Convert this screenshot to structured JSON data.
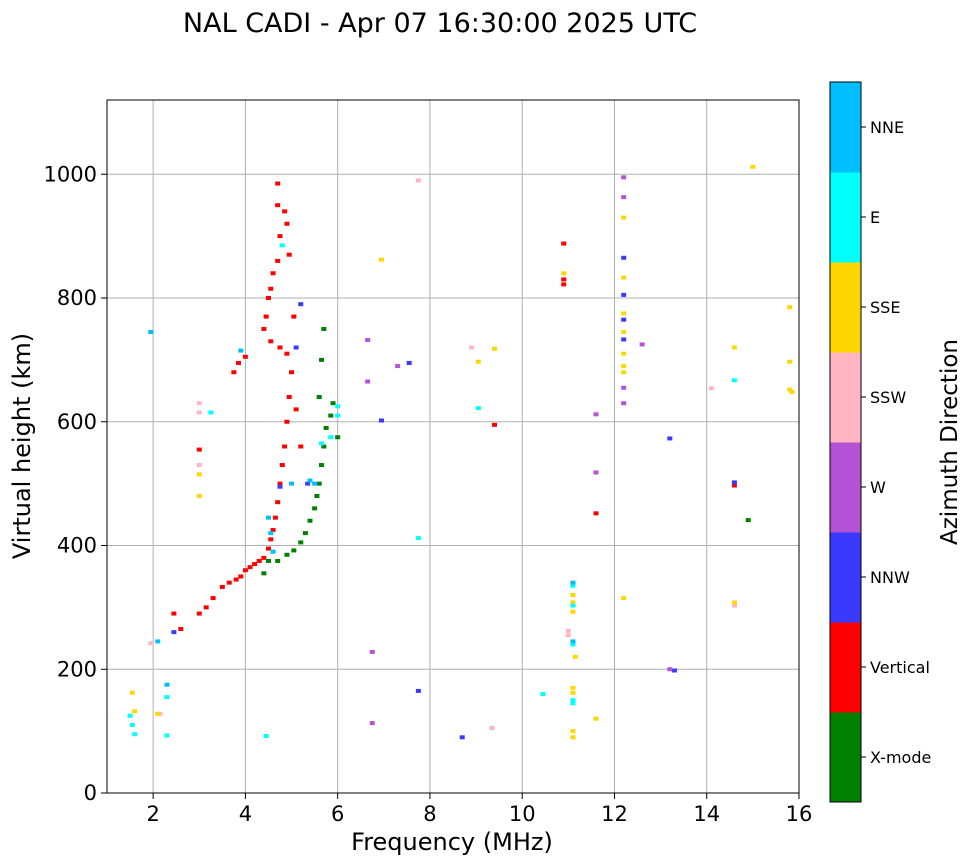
{
  "chart_data": {
    "type": "scatter",
    "title": "NAL CADI - Apr 07 16:30:00 2025 UTC",
    "xlabel": "Frequency (MHz)",
    "ylabel": "Virtual height (km)",
    "xlim": [
      1,
      16
    ],
    "ylim": [
      0,
      1120
    ],
    "xticks": [
      2,
      4,
      6,
      8,
      10,
      12,
      14,
      16
    ],
    "yticks": [
      0,
      200,
      400,
      600,
      800,
      1000
    ],
    "grid": true,
    "colorbar": {
      "label": "Azimuth Direction",
      "categories": [
        {
          "name": "X-mode",
          "color": "#008000"
        },
        {
          "name": "Vertical",
          "color": "#ff0000"
        },
        {
          "name": "NNW",
          "color": "#3a3aff"
        },
        {
          "name": "W",
          "color": "#b553d6"
        },
        {
          "name": "SSW",
          "color": "#ffb6c1"
        },
        {
          "name": "SSE",
          "color": "#ffd700"
        },
        {
          "name": "E",
          "color": "#00ffff"
        },
        {
          "name": "NNE",
          "color": "#00bfff"
        }
      ]
    },
    "series": [
      {
        "name": "Vertical",
        "points": [
          [
            2.45,
            290
          ],
          [
            2.6,
            265
          ],
          [
            3.0,
            290
          ],
          [
            3.15,
            300
          ],
          [
            3.3,
            315
          ],
          [
            3.5,
            333
          ],
          [
            3.65,
            340
          ],
          [
            3.8,
            345
          ],
          [
            3.9,
            350
          ],
          [
            4.0,
            360
          ],
          [
            4.1,
            365
          ],
          [
            4.2,
            370
          ],
          [
            4.3,
            375
          ],
          [
            4.4,
            380
          ],
          [
            4.5,
            395
          ],
          [
            4.55,
            410
          ],
          [
            4.6,
            425
          ],
          [
            4.65,
            445
          ],
          [
            4.7,
            470
          ],
          [
            4.75,
            500
          ],
          [
            4.8,
            530
          ],
          [
            4.85,
            560
          ],
          [
            4.9,
            600
          ],
          [
            4.95,
            640
          ],
          [
            5.0,
            680
          ],
          [
            4.9,
            710
          ],
          [
            4.75,
            720
          ],
          [
            4.55,
            730
          ],
          [
            4.4,
            750
          ],
          [
            4.45,
            770
          ],
          [
            4.5,
            800
          ],
          [
            4.55,
            815
          ],
          [
            4.6,
            840
          ],
          [
            4.7,
            860
          ],
          [
            4.75,
            900
          ],
          [
            4.7,
            950
          ],
          [
            4.7,
            985
          ],
          [
            4.85,
            940
          ],
          [
            4.9,
            920
          ],
          [
            4.95,
            870
          ],
          [
            5.05,
            770
          ],
          [
            5.1,
            620
          ],
          [
            5.2,
            560
          ],
          [
            3.75,
            680
          ],
          [
            3.85,
            695
          ],
          [
            4.0,
            705
          ],
          [
            3.0,
            555
          ],
          [
            10.9,
            888
          ],
          [
            10.9,
            830
          ],
          [
            10.9,
            822
          ],
          [
            9.4,
            595
          ],
          [
            11.6,
            452
          ],
          [
            14.6,
            497
          ]
        ]
      },
      {
        "name": "X-mode",
        "points": [
          [
            4.5,
            375
          ],
          [
            4.7,
            375
          ],
          [
            4.9,
            385
          ],
          [
            5.05,
            392
          ],
          [
            5.2,
            405
          ],
          [
            5.3,
            420
          ],
          [
            5.4,
            440
          ],
          [
            5.5,
            460
          ],
          [
            5.55,
            480
          ],
          [
            5.6,
            500
          ],
          [
            5.65,
            530
          ],
          [
            5.7,
            560
          ],
          [
            5.75,
            590
          ],
          [
            5.85,
            610
          ],
          [
            5.9,
            630
          ],
          [
            5.6,
            640
          ],
          [
            5.65,
            700
          ],
          [
            5.7,
            750
          ],
          [
            6.0,
            575
          ],
          [
            14.9,
            441
          ],
          [
            4.4,
            355
          ]
        ]
      },
      {
        "name": "NNW",
        "points": [
          [
            5.2,
            790
          ],
          [
            5.1,
            720
          ],
          [
            4.75,
            495
          ],
          [
            7.55,
            695
          ],
          [
            6.95,
            602
          ],
          [
            7.75,
            165
          ],
          [
            8.7,
            90
          ],
          [
            12.2,
            865
          ],
          [
            12.2,
            805
          ],
          [
            12.2,
            765
          ],
          [
            12.2,
            733
          ],
          [
            13.2,
            573
          ],
          [
            13.3,
            198
          ],
          [
            14.6,
            502
          ],
          [
            2.45,
            260
          ],
          [
            5.35,
            500
          ]
        ]
      },
      {
        "name": "W",
        "points": [
          [
            6.65,
            732
          ],
          [
            6.65,
            665
          ],
          [
            6.75,
            228
          ],
          [
            6.75,
            113
          ],
          [
            7.3,
            690
          ],
          [
            11.6,
            612
          ],
          [
            11.6,
            518
          ],
          [
            12.2,
            995
          ],
          [
            12.2,
            963
          ],
          [
            12.2,
            655
          ],
          [
            12.2,
            630
          ],
          [
            12.6,
            725
          ],
          [
            13.2,
            200
          ]
        ]
      },
      {
        "name": "SSW",
        "points": [
          [
            1.95,
            242
          ],
          [
            3.0,
            630
          ],
          [
            3.0,
            615
          ],
          [
            3.0,
            530
          ],
          [
            2.15,
            128
          ],
          [
            8.9,
            720
          ],
          [
            9.35,
            105
          ],
          [
            7.75,
            990
          ],
          [
            11.0,
            262
          ],
          [
            11.0,
            255
          ],
          [
            14.1,
            654
          ],
          [
            14.6,
            303
          ]
        ]
      },
      {
        "name": "SSE",
        "points": [
          [
            1.55,
            162
          ],
          [
            1.6,
            132
          ],
          [
            2.1,
            128
          ],
          [
            3.0,
            515
          ],
          [
            3.0,
            480
          ],
          [
            6.95,
            862
          ],
          [
            9.05,
            697
          ],
          [
            9.4,
            718
          ],
          [
            10.9,
            840
          ],
          [
            11.1,
            320
          ],
          [
            11.1,
            308
          ],
          [
            11.1,
            293
          ],
          [
            11.1,
            170
          ],
          [
            11.1,
            162
          ],
          [
            11.1,
            100
          ],
          [
            11.1,
            90
          ],
          [
            11.15,
            220
          ],
          [
            11.6,
            120
          ],
          [
            12.2,
            930
          ],
          [
            12.2,
            833
          ],
          [
            12.2,
            775
          ],
          [
            12.2,
            745
          ],
          [
            12.2,
            710
          ],
          [
            12.2,
            690
          ],
          [
            12.2,
            680
          ],
          [
            12.2,
            315
          ],
          [
            14.6,
            720
          ],
          [
            14.6,
            308
          ],
          [
            15.0,
            1012
          ],
          [
            15.8,
            785
          ],
          [
            15.8,
            697
          ],
          [
            15.8,
            652
          ],
          [
            15.85,
            648
          ]
        ]
      },
      {
        "name": "E",
        "points": [
          [
            1.55,
            110
          ],
          [
            1.6,
            95
          ],
          [
            2.3,
            93
          ],
          [
            2.3,
            155
          ],
          [
            3.25,
            615
          ],
          [
            4.45,
            92
          ],
          [
            4.8,
            885
          ],
          [
            5.65,
            565
          ],
          [
            5.85,
            575
          ],
          [
            6.0,
            625
          ],
          [
            6.0,
            610
          ],
          [
            7.75,
            412
          ],
          [
            9.05,
            622
          ],
          [
            10.45,
            160
          ],
          [
            11.1,
            335
          ],
          [
            11.1,
            303
          ],
          [
            11.1,
            240
          ],
          [
            11.1,
            150
          ],
          [
            11.1,
            145
          ],
          [
            14.6,
            667
          ],
          [
            1.5,
            125
          ]
        ]
      },
      {
        "name": "NNE",
        "points": [
          [
            1.95,
            745
          ],
          [
            2.1,
            245
          ],
          [
            2.3,
            175
          ],
          [
            3.9,
            715
          ],
          [
            4.5,
            445
          ],
          [
            4.55,
            420
          ],
          [
            4.6,
            390
          ],
          [
            5.0,
            500
          ],
          [
            5.4,
            505
          ],
          [
            5.5,
            500
          ],
          [
            11.1,
            340
          ],
          [
            11.1,
            245
          ]
        ]
      }
    ]
  }
}
